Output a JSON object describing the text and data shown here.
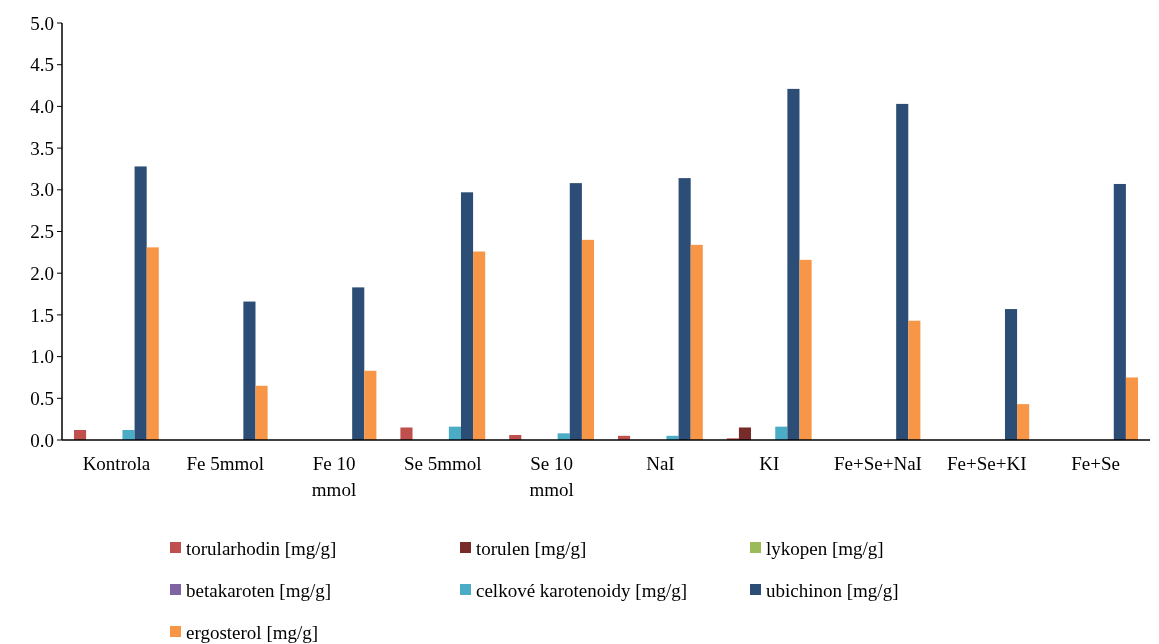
{
  "chart_data": {
    "type": "bar",
    "categories": [
      "Kontrola",
      "Fe 5mmol",
      "Fe 10 mmol",
      "Se 5mmol",
      "Se 10 mmol",
      "NaI",
      "KI",
      "Fe+Se+NaI",
      "Fe+Se+KI",
      "Fe+Se"
    ],
    "series": [
      {
        "name": "torularhodin [mg/g]",
        "color": "#c0504d",
        "values": [
          0.12,
          0,
          0,
          0.15,
          0.06,
          0.05,
          0.02,
          0,
          0,
          0
        ]
      },
      {
        "name": "torulen [mg/g]",
        "color": "#772c2a",
        "values": [
          0,
          0,
          0,
          0,
          0,
          0,
          0.15,
          0,
          0,
          0
        ]
      },
      {
        "name": "lykopen [mg/g]",
        "color": "#9bbb59",
        "values": [
          0,
          0,
          0,
          0,
          0,
          0,
          0,
          0,
          0,
          0
        ]
      },
      {
        "name": "betakaroten [mg/g]",
        "color": "#8064a2",
        "values": [
          0,
          0,
          0,
          0,
          0,
          0,
          0,
          0,
          0,
          0
        ]
      },
      {
        "name": "celkové karotenoidy [mg/g]",
        "color": "#4bacc6",
        "values": [
          0.12,
          0,
          0,
          0.16,
          0.08,
          0.05,
          0.16,
          0,
          0,
          0
        ]
      },
      {
        "name": "ubichinon [mg/g]",
        "color": "#2c4d75",
        "values": [
          3.28,
          1.66,
          1.83,
          2.97,
          3.08,
          3.14,
          4.21,
          4.03,
          1.57,
          3.07
        ]
      },
      {
        "name": "ergosterol [mg/g]",
        "color": "#f79646",
        "values": [
          2.31,
          0.65,
          0.83,
          2.26,
          2.4,
          2.34,
          2.16,
          1.43,
          0.43,
          0.75
        ]
      }
    ],
    "ylim": [
      0,
      5
    ],
    "yticks": [
      {
        "value": 0,
        "label": "0.0"
      },
      0.5,
      {
        "value": 1,
        "label": "1.0"
      },
      1.5,
      {
        "value": 2,
        "label": "2.0"
      },
      2.5,
      {
        "value": 3,
        "label": "3.0"
      },
      3.5,
      {
        "value": 4,
        "label": "4.0"
      },
      4.5,
      {
        "value": 5,
        "label": "5.0"
      }
    ],
    "grid": false,
    "legend": "bottom"
  }
}
